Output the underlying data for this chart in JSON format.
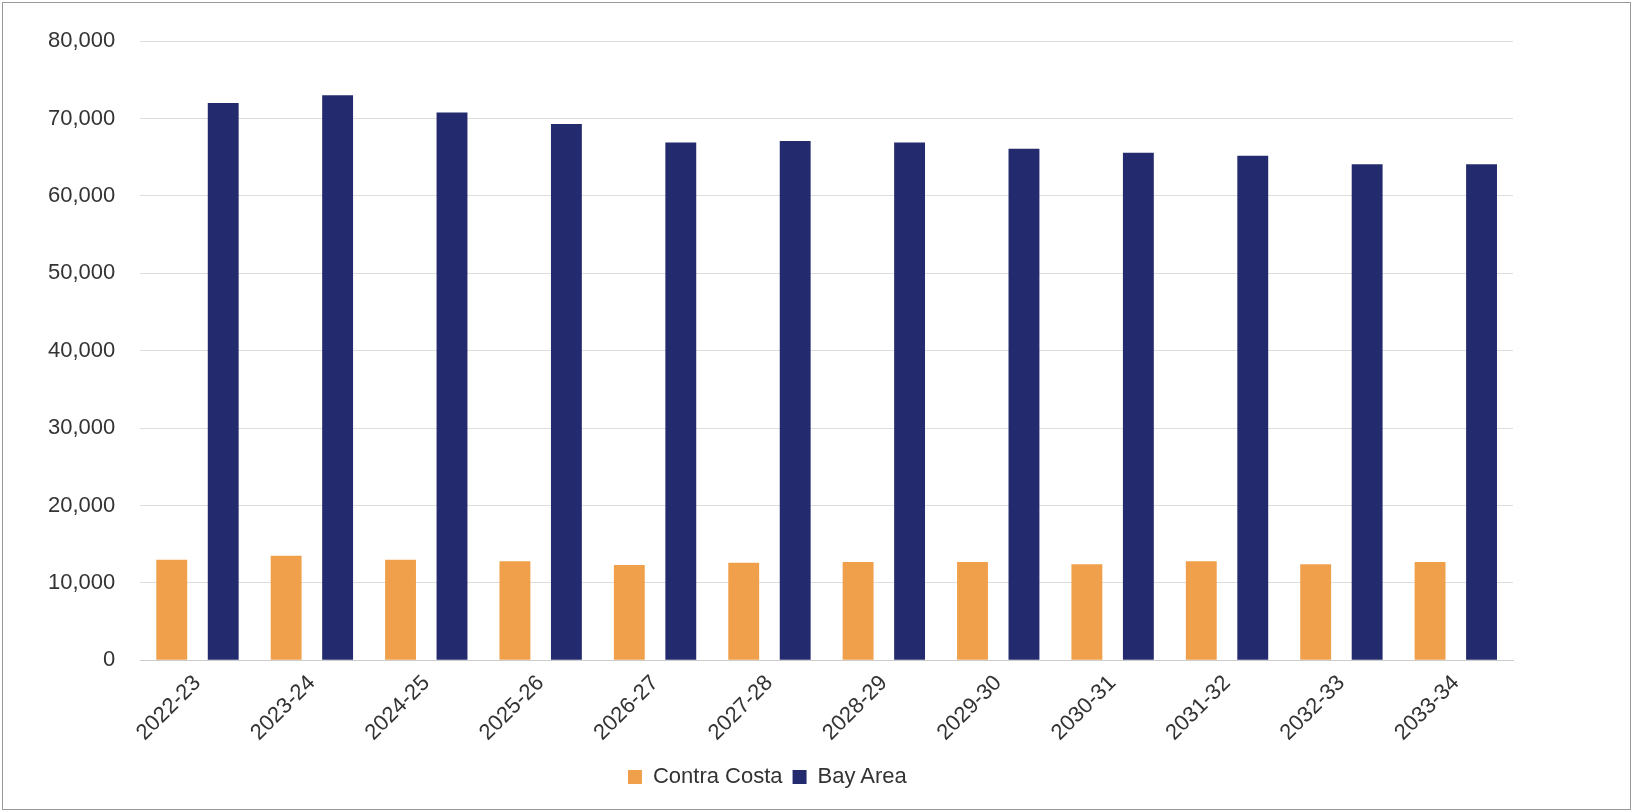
{
  "chart_data": {
    "type": "bar",
    "categories": [
      "2022-23",
      "2023-24",
      "2024-25",
      "2025-26",
      "2026-27",
      "2027-28",
      "2028-29",
      "2029-30",
      "2030-31",
      "2031-32",
      "2032-33",
      "2033-34"
    ],
    "series": [
      {
        "name": "Contra Costa",
        "color": "#f0a04b",
        "values": [
          13000,
          13500,
          13000,
          12800,
          12300,
          12600,
          12700,
          12700,
          12400,
          12800,
          12400,
          12700
        ]
      },
      {
        "name": "Bay Area",
        "color": "#232b6e",
        "values": [
          72000,
          73000,
          70800,
          69300,
          66900,
          67100,
          66900,
          66100,
          65600,
          65200,
          64100,
          64100
        ]
      }
    ],
    "ylim": [
      0,
      80000
    ],
    "yticks": [
      0,
      {
        "value": 10000,
        "label": "10,000"
      },
      {
        "value": 20000,
        "label": "20,000"
      },
      {
        "value": 30000,
        "label": "30,000"
      },
      {
        "value": 40000,
        "label": "40,000"
      },
      {
        "value": 50000,
        "label": "50,000"
      },
      {
        "value": 60000,
        "label": "60,000"
      },
      {
        "value": 70000,
        "label": "70,000"
      },
      {
        "value": 80000,
        "label": "80,000"
      }
    ],
    "grid": "y",
    "legend": "bottom"
  }
}
